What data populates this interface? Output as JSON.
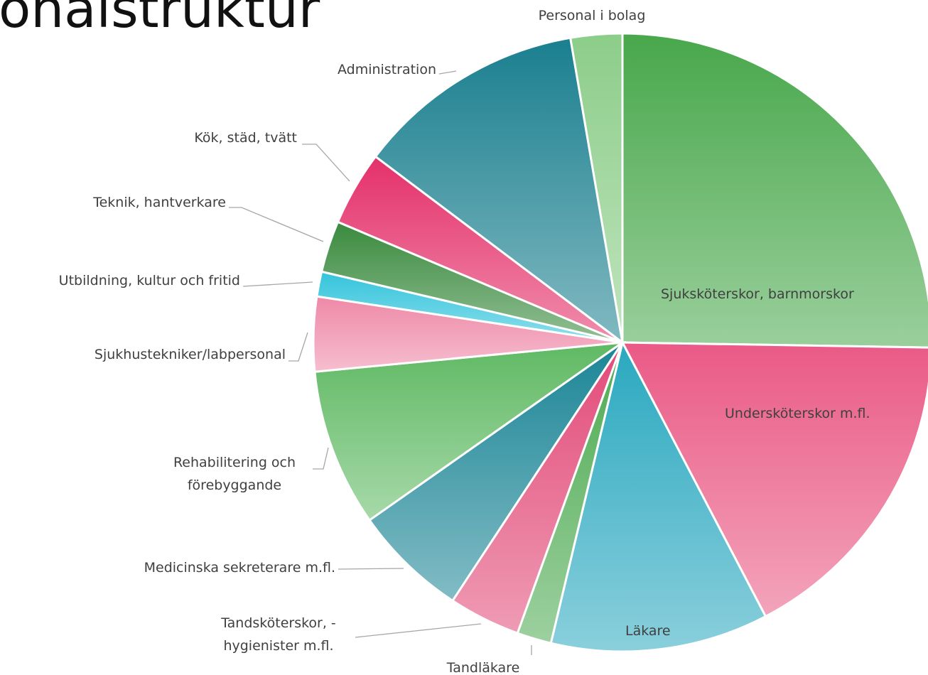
{
  "chart_data": {
    "type": "pie",
    "title": "onalstruktur",
    "categories": [
      "Sjuksköterskor, barnmorskor",
      "Undersköterskor m.fl.",
      "Läkare",
      "Tandläkare",
      "Tandsköterskor, - hygienister m.fl.",
      "Medicinska sekreterare m.fl.",
      "Rehabilitering och förebyggande",
      "Sjukhustekniker/labpersonal",
      "Utbildning, kultur och fritid",
      "Teknik, hantverkare",
      "Kök, städ, tvätt",
      "Administration",
      "Personal i bolag"
    ],
    "values": [
      25.3,
      17.1,
      11.4,
      1.8,
      3.75,
      6.0,
      8.25,
      3.9,
      1.3,
      2.7,
      3.9,
      12.05,
      2.7
    ],
    "colors": [
      "#48a74b",
      "#ea5a86",
      "#2aa8bf",
      "#4caa50",
      "#e24a78",
      "#1b8596",
      "#5fb963",
      "#ee89a8",
      "#33c4dc",
      "#3a8a3e",
      "#e4306a",
      "#1a7f8f",
      "#8ccd89"
    ]
  }
}
